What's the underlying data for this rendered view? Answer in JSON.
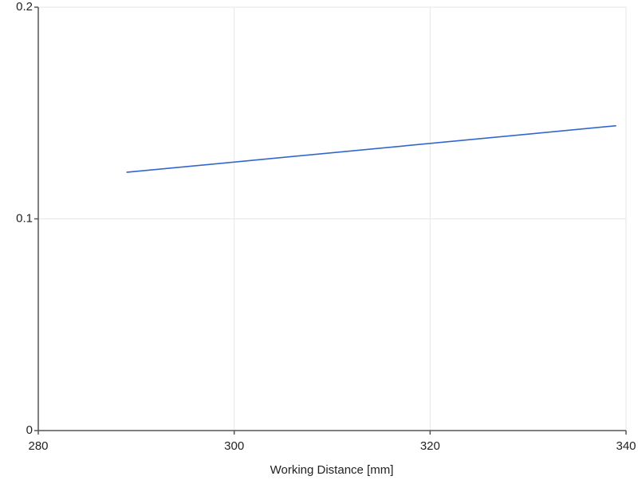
{
  "chart_data": {
    "type": "line",
    "x_label": "Working Distance [mm]",
    "x": [
      289,
      339
    ],
    "series": [
      {
        "color": "#3366cc",
        "values": [
          0.122,
          0.144
        ]
      }
    ],
    "xlim": [
      280,
      340
    ],
    "xticks": [
      280,
      300,
      320,
      340
    ],
    "ylim": [
      0,
      0.2
    ],
    "yticks": [
      0,
      0.1,
      0.2
    ],
    "grid": true
  }
}
